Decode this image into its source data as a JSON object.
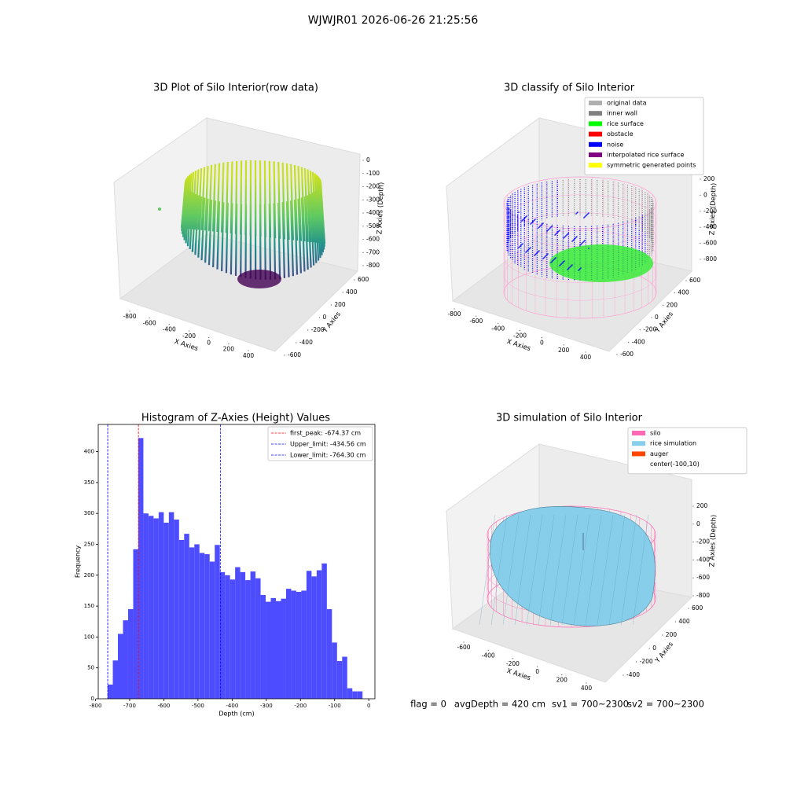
{
  "title": "WJWJR01 2026-06-26 21:25:56",
  "footer": [
    "flag = 0",
    "avgDepth = 420 cm",
    "sv1 = 700~2300",
    "sv2 = 700~2300"
  ],
  "chart_data": [
    {
      "type": "scatter3d",
      "title": "3D Plot of Silo Interior(row data)",
      "xlabel": "X Axies",
      "ylabel": "Y Axies",
      "zlabel": "Z Axies (Depth)",
      "xticks": [
        -800,
        -600,
        -400,
        -200,
        0,
        200,
        400
      ],
      "yticks": [
        -600,
        -400,
        -200,
        0,
        200,
        400,
        600
      ],
      "zticks": [
        0,
        -100,
        -200,
        -300,
        -400,
        -500,
        -600,
        -700,
        -800
      ]
    },
    {
      "type": "scatter3d",
      "title": "3D classify of Silo Interior",
      "xlabel": "X Axies",
      "ylabel": "Y Axies",
      "zlabel": "Z Axies (Depth)",
      "xticks": [
        -800,
        -600,
        -400,
        -200,
        0,
        200,
        400
      ],
      "yticks": [
        -600,
        -400,
        -200,
        0,
        200,
        400,
        600
      ],
      "zticks": [
        200,
        0,
        -200,
        -400,
        -600,
        -800
      ],
      "series": [
        {
          "name": "original data",
          "color": "#b0b0b0"
        },
        {
          "name": "inner wall",
          "color": "#808080"
        },
        {
          "name": "rice surface",
          "color": "#00ff00"
        },
        {
          "name": "obstacle",
          "color": "#ff0000"
        },
        {
          "name": "noise",
          "color": "#0000ff"
        },
        {
          "name": "interpolated rice surface",
          "color": "#800080"
        },
        {
          "name": "symmetric generated points",
          "color": "#ffff00"
        }
      ]
    },
    {
      "type": "histogram",
      "title": "Histogram of Z-Axies (Height) Values",
      "xlabel": "Depth (cm)",
      "ylabel": "Frequency",
      "color": "#4d4dff",
      "bins": [
        -764.3,
        -749.38,
        -734.46,
        -719.54,
        -704.62,
        -689.7,
        -674.78,
        -659.86,
        -644.94,
        -630.02,
        -615.1,
        -600.18,
        -585.26,
        -570.34,
        -555.42,
        -540.5,
        -525.58,
        -510.66,
        -495.74,
        -480.82,
        -465.9,
        -450.98,
        -436.06,
        -421.14,
        -406.22,
        -391.3,
        -376.38,
        -361.46,
        -346.54,
        -331.62,
        -316.7,
        -301.78,
        -286.86,
        -271.94,
        -257.02,
        -242.1,
        -227.18,
        -212.26,
        -197.34,
        -182.42,
        -167.5,
        -152.58,
        -137.66,
        -122.74,
        -107.82,
        -92.9,
        -77.98,
        -63.06,
        -48.14,
        -33.22,
        -18.3
      ],
      "values": [
        23,
        62,
        105,
        127,
        145,
        242,
        422,
        300,
        296,
        292,
        302,
        285,
        302,
        290,
        257,
        267,
        245,
        250,
        236,
        234,
        222,
        249,
        205,
        200,
        193,
        213,
        205,
        192,
        206,
        195,
        168,
        157,
        163,
        158,
        162,
        178,
        175,
        173,
        175,
        207,
        198,
        208,
        219,
        145,
        91,
        61,
        68,
        17,
        12,
        12
      ],
      "xlim": [
        -792,
        18
      ],
      "ylim": [
        0,
        444
      ],
      "xticks": [
        -800,
        -700,
        -600,
        -500,
        -400,
        -300,
        -200,
        -100,
        0
      ],
      "yticks": [
        0,
        50,
        100,
        150,
        200,
        250,
        300,
        350,
        400
      ],
      "lines": [
        {
          "value": -674.37,
          "label": "first_peak: -674.37 cm",
          "color": "#ff0000"
        },
        {
          "value": -434.56,
          "label": "Upper_limit: -434.56 cm",
          "color": "#0000ff"
        },
        {
          "value": -764.3,
          "label": "Lower_limit: -764.30 cm",
          "color": "#0000ff"
        }
      ]
    },
    {
      "type": "surface3d",
      "title": "3D simulation of Silo Interior",
      "xlabel": "X Axies",
      "ylabel": "Y Axies",
      "zlabel": "Z Axies (Depth)",
      "xticks": [
        -600,
        -400,
        -200,
        0,
        200,
        400
      ],
      "yticks": [
        -400,
        -200,
        0,
        200,
        400,
        600
      ],
      "zticks": [
        200,
        0,
        -200,
        -400,
        -600,
        -800
      ],
      "series": [
        {
          "name": "silo",
          "color": "#ff69b4"
        },
        {
          "name": "rice simulation",
          "color": "#87ceeb"
        },
        {
          "name": "auger",
          "color": "#ff4500"
        },
        {
          "name": "center(-100,10)"
        }
      ]
    }
  ]
}
